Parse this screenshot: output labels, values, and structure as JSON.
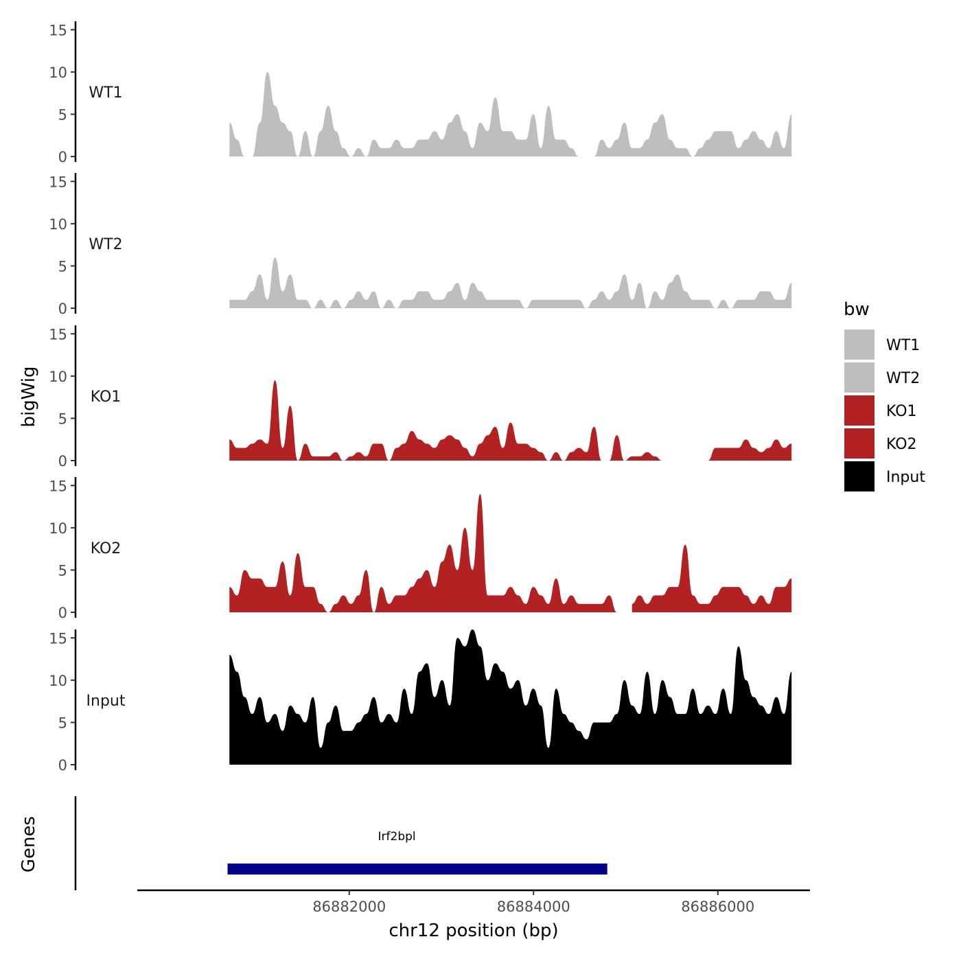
{
  "chart_data": {
    "type": "area",
    "title": "",
    "ylabel": "bigWig",
    "genes_label": "Genes",
    "xlabel": "chr12 position (bp)",
    "xlim": [
      86879700,
      86887000
    ],
    "x_ticks": [
      86882000,
      86884000,
      86886000
    ],
    "x_tick_labels": [
      "86882000",
      "86884000",
      "86886000"
    ],
    "ylim": [
      0,
      16
    ],
    "y_ticks": [
      0,
      5,
      10,
      15
    ],
    "y_tick_labels": [
      "0",
      "5",
      "10",
      "15"
    ],
    "x_start": 86880700,
    "x_end": 86886800,
    "legend": {
      "title": "bw",
      "position": "right",
      "entries": [
        {
          "label": "WT1",
          "color": "#bebebe"
        },
        {
          "label": "WT2",
          "color": "#bebebe"
        },
        {
          "label": "KO1",
          "color": "#b22222"
        },
        {
          "label": "KO2",
          "color": "#b22222"
        },
        {
          "label": "Input",
          "color": "#000000"
        }
      ]
    },
    "series": [
      {
        "name": "WT1",
        "color": "#bebebe",
        "x_start": 86880700,
        "x_end": 86886800,
        "values": [
          4,
          2,
          0,
          0,
          4,
          10,
          6,
          4,
          3,
          0,
          3,
          0,
          3,
          6,
          3,
          1,
          0,
          1,
          0,
          2,
          1,
          1,
          2,
          1,
          1,
          2,
          2,
          3,
          2,
          4,
          5,
          3,
          1,
          4,
          3,
          7,
          3,
          3,
          2,
          2,
          5,
          1,
          6,
          2,
          2,
          1,
          0,
          null,
          0,
          2,
          1,
          2,
          4,
          1,
          1,
          2,
          4,
          5,
          2,
          1,
          1,
          0,
          1,
          2,
          3,
          3,
          3,
          1,
          2,
          3,
          2,
          1,
          3,
          1,
          5
        ]
      },
      {
        "name": "WT2",
        "color": "#bebebe",
        "x_start": 86880700,
        "x_end": 86886800,
        "values": [
          1,
          1,
          1,
          2,
          4,
          1,
          6,
          2,
          4,
          1,
          1,
          0,
          1,
          0,
          1,
          0,
          1,
          2,
          1,
          2,
          0,
          1,
          0,
          1,
          1,
          2,
          2,
          1,
          1,
          2,
          3,
          1,
          3,
          2,
          1,
          1,
          1,
          1,
          1,
          0,
          1,
          1,
          1,
          1,
          1,
          1,
          1,
          0,
          1,
          2,
          1,
          2,
          4,
          1,
          3,
          0,
          2,
          1,
          3,
          4,
          2,
          1,
          1,
          1,
          0,
          1,
          0,
          1,
          1,
          1,
          2,
          2,
          1,
          1,
          3
        ]
      },
      {
        "name": "KO1",
        "color": "#b22222",
        "x_start": 86880700,
        "x_end": 86886800,
        "values": [
          2.5,
          1.5,
          1.5,
          2.0,
          2.5,
          2.0,
          9.5,
          1.5,
          6.5,
          0.0,
          2.0,
          0.5,
          0.5,
          0.5,
          1.0,
          0.0,
          0.5,
          1.0,
          0.5,
          2.0,
          2.0,
          0.0,
          1.5,
          2.0,
          3.5,
          2.5,
          2.0,
          1.5,
          2.5,
          3.0,
          2.5,
          1.5,
          0.5,
          2.0,
          3.0,
          4.0,
          1.5,
          4.5,
          2.0,
          2.0,
          1.5,
          1.0,
          0.0,
          1.0,
          0.0,
          1.0,
          1.5,
          1.0,
          4.0,
          0.0,
          0.0,
          3.0,
          0.0,
          0.5,
          0.5,
          1.0,
          0.5,
          0.0,
          null,
          null,
          null,
          null,
          null,
          0.0,
          1.5,
          1.5,
          1.5,
          1.5,
          2.5,
          1.5,
          1.0,
          1.5,
          2.5,
          1.5,
          2.0
        ]
      },
      {
        "name": "KO2",
        "color": "#b22222",
        "x_start": 86880700,
        "x_end": 86886800,
        "values": [
          3,
          2,
          5,
          4,
          4,
          3,
          3,
          6,
          2,
          7,
          3,
          3,
          1,
          0,
          1,
          2,
          1,
          2,
          5,
          0,
          3,
          1,
          2,
          2,
          3,
          4,
          5,
          3,
          6,
          8,
          5,
          10,
          5,
          14,
          2,
          2,
          2,
          3,
          2,
          1,
          3,
          2,
          1,
          4,
          1,
          2,
          1,
          1,
          1,
          1,
          2,
          0,
          null,
          1,
          2,
          1,
          2,
          2,
          3,
          3,
          8,
          2,
          1,
          1,
          2,
          3,
          3,
          3,
          2,
          1,
          2,
          1,
          3,
          3,
          4
        ]
      },
      {
        "name": "Input",
        "color": "#000000",
        "x_start": 86880700,
        "x_end": 86886800,
        "values": [
          13,
          11,
          8,
          6,
          8,
          5,
          6,
          4,
          7,
          6,
          5,
          8,
          2,
          5,
          7,
          4,
          4,
          5,
          6,
          8,
          5,
          6,
          5,
          9,
          6,
          11,
          12,
          8,
          10,
          7,
          15,
          14,
          16,
          14,
          10,
          12,
          11,
          9,
          10,
          7,
          9,
          7,
          2,
          9,
          6,
          5,
          4,
          3,
          5,
          5,
          5,
          6,
          10,
          7,
          6,
          11,
          6,
          10,
          8,
          6,
          6,
          9,
          6,
          7,
          6,
          9,
          6,
          14,
          10,
          8,
          7,
          6,
          8,
          6,
          11
        ]
      }
    ],
    "gene_track": {
      "gene_name": "Irf2bpl",
      "start": 86880680,
      "end": 86884800,
      "color": "#00008b"
    }
  }
}
